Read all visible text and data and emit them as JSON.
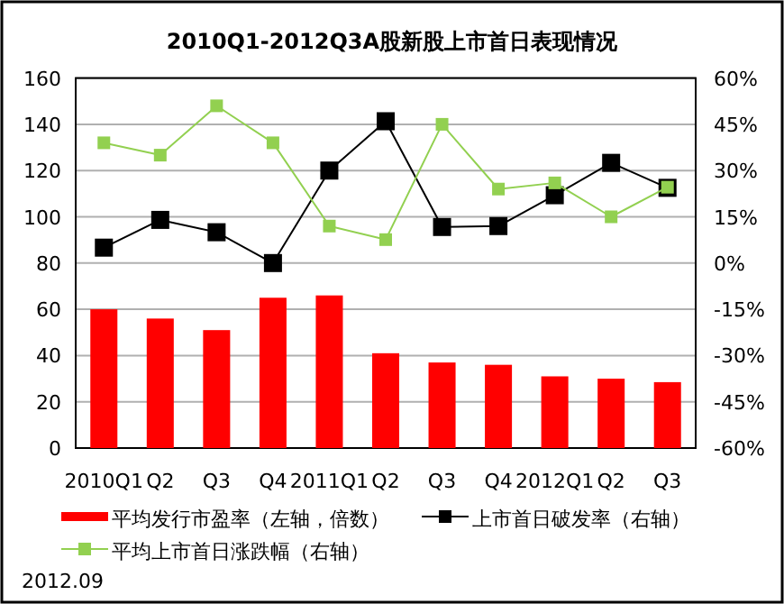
{
  "chart_data": {
    "type": "bar",
    "title": "2010Q1-2012Q3A股新股上市首日表现情况",
    "categories": [
      "2010Q1",
      "Q2",
      "Q3",
      "Q4",
      "2011Q1",
      "Q2",
      "Q3",
      "Q4",
      "2012Q1",
      "Q2",
      "Q3"
    ],
    "series": [
      {
        "name": "平均发行市盈率（左轴，倍数）",
        "color": "#ff0000",
        "values": [
          60,
          56,
          51,
          65,
          66,
          41,
          37,
          36,
          31,
          30,
          28.5
        ]
      },
      {
        "name": "上市首日破发率（右轴）",
        "type": "line",
        "axis": "y2",
        "color": "#000000",
        "values": [
          5,
          14,
          10,
          0,
          30,
          46,
          11.7,
          12,
          22,
          32.5,
          24.4
        ]
      },
      {
        "name": "平均上市首日涨跌幅（右轴）",
        "type": "line",
        "axis": "y2",
        "color": "#92d050",
        "values": [
          39,
          35,
          51,
          39,
          12,
          7.6,
          45,
          24,
          26,
          15,
          24.6
        ]
      }
    ],
    "ylim": [
      0,
      160
    ],
    "yticks": [
      0,
      20,
      40,
      60,
      80,
      100,
      120,
      140,
      160
    ],
    "y2lim": [
      -60,
      60
    ],
    "y2ticks": [
      {
        "value": -60,
        "label": "-60%"
      },
      {
        "value": -45,
        "label": "-45%"
      },
      {
        "value": -30,
        "label": "-30%"
      },
      {
        "value": -15,
        "label": "-15%"
      },
      {
        "value": 0,
        "label": "0%"
      },
      {
        "value": 15,
        "label": "15%"
      },
      {
        "value": 30,
        "label": "30%"
      },
      {
        "value": 45,
        "label": "45%"
      },
      {
        "value": 60,
        "label": "60%"
      }
    ],
    "grid": "y",
    "legend": "bottom",
    "marker": "square",
    "annotations": [
      "2012.09"
    ]
  }
}
